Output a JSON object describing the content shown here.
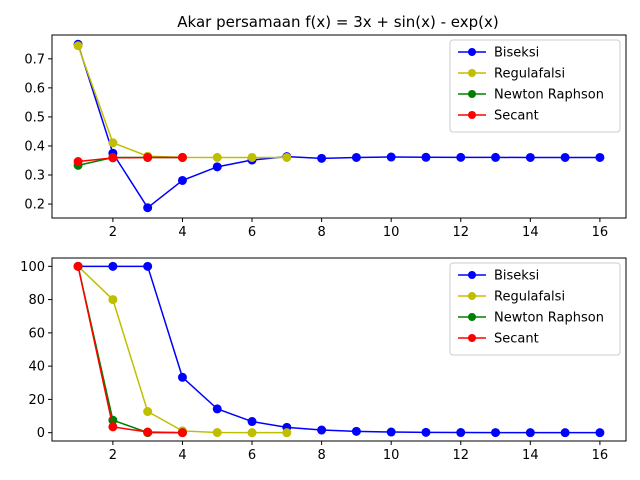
{
  "title": "Akar persamaan f(x) = 3x + sin(x) - exp(x)",
  "chart_data": [
    {
      "type": "line",
      "xlabel": "",
      "ylabel": "",
      "xlim": [
        0.25,
        16.75
      ],
      "ylim": [
        0.152,
        0.782
      ],
      "xticks": [
        2,
        4,
        6,
        8,
        10,
        12,
        14,
        16
      ],
      "yticks": [
        0.2,
        0.3,
        0.4,
        0.5,
        0.6,
        0.7
      ],
      "legend": "top-right",
      "grid": false,
      "series": [
        {
          "name": "Biseksi",
          "color": "#0000ff",
          "x": [
            1,
            2,
            3,
            4,
            5,
            6,
            7,
            8,
            9,
            10,
            11,
            12,
            13,
            14,
            15,
            16
          ],
          "y": [
            0.75,
            0.375,
            0.1875,
            0.28125,
            0.328125,
            0.3515625,
            0.3632813,
            0.3574219,
            0.3603516,
            0.3618164,
            0.361084,
            0.3607178,
            0.3605347,
            0.3604431,
            0.3604889,
            0.360466
          ]
        },
        {
          "name": "Regulafalsi",
          "color": "#bfbf00",
          "x": [
            1,
            2,
            3,
            4,
            5,
            6,
            7
          ],
          "y": [
            0.745,
            0.411,
            0.3647,
            0.3609,
            0.3605,
            0.3604,
            0.3604
          ]
        },
        {
          "name": "Newton Raphson",
          "color": "#008000",
          "x": [
            1,
            2,
            3,
            4
          ],
          "y": [
            0.3333,
            0.3602,
            0.3604,
            0.3604
          ]
        },
        {
          "name": "Secant",
          "color": "#ff0000",
          "x": [
            1,
            2,
            3,
            4
          ],
          "y": [
            0.3464,
            0.359,
            0.3605,
            0.3604
          ]
        }
      ]
    },
    {
      "type": "line",
      "xlabel": "",
      "ylabel": "",
      "xlim": [
        0.25,
        16.75
      ],
      "ylim": [
        -5,
        105
      ],
      "xticks": [
        2,
        4,
        6,
        8,
        10,
        12,
        14,
        16
      ],
      "yticks": [
        0,
        20,
        40,
        60,
        80,
        100
      ],
      "legend": "top-right",
      "grid": false,
      "series": [
        {
          "name": "Biseksi",
          "color": "#0000ff",
          "x": [
            1,
            2,
            3,
            4,
            5,
            6,
            7,
            8,
            9,
            10,
            11,
            12,
            13,
            14,
            15,
            16
          ],
          "y": [
            100,
            100,
            100,
            33.3,
            14.3,
            6.7,
            3.2,
            1.6,
            0.8,
            0.4,
            0.2,
            0.1,
            0.05,
            0.025,
            0.013,
            0.006
          ]
        },
        {
          "name": "Regulafalsi",
          "color": "#bfbf00",
          "x": [
            1,
            2,
            3,
            4,
            5,
            6,
            7
          ],
          "y": [
            100,
            80.0,
            12.7,
            1.05,
            0.1,
            0.01,
            0.001
          ]
        },
        {
          "name": "Newton Raphson",
          "color": "#008000",
          "x": [
            1,
            2,
            3,
            4
          ],
          "y": [
            100,
            7.5,
            0.05,
            0.0
          ]
        },
        {
          "name": "Secant",
          "color": "#ff0000",
          "x": [
            1,
            2,
            3,
            4
          ],
          "y": [
            100,
            3.5,
            0.4,
            0.0
          ]
        }
      ]
    }
  ]
}
